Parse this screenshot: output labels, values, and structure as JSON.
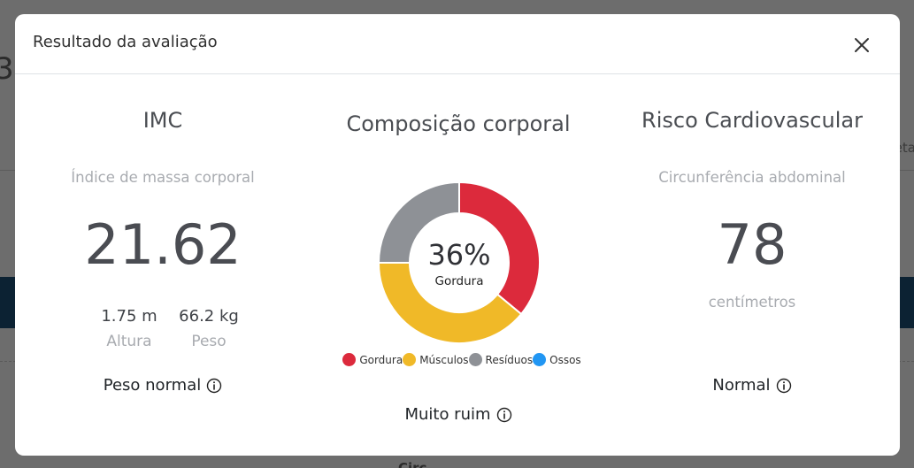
{
  "modal": {
    "title": "Resultado da avaliação"
  },
  "imc": {
    "title": "IMC",
    "subtitle": "Índice de massa corporal",
    "value": "21.62",
    "height_value": "1.75 m",
    "height_label": "Altura",
    "weight_value": "66.2 kg",
    "weight_label": "Peso",
    "status": "Peso normal"
  },
  "composition": {
    "title": "Composição corporal",
    "center_value": "36%",
    "center_label": "Gordura",
    "status": "Muito ruim",
    "legend": [
      {
        "label": "Gordura",
        "color": "#dc2a3c"
      },
      {
        "label": "Músculos",
        "color": "#f0b928"
      },
      {
        "label": "Resíduos",
        "color": "#8e9196"
      },
      {
        "label": "Ossos",
        "color": "#2196f3"
      }
    ]
  },
  "risk": {
    "title": "Risco Cardiovascular",
    "subtitle": "Circunferência abdominal",
    "value": "78",
    "unit": "centímetros",
    "status": "Normal"
  },
  "chart_data": {
    "type": "pie",
    "categories": [
      "Gordura",
      "Músculos",
      "Resíduos",
      "Ossos"
    ],
    "values": [
      36,
      39,
      25,
      0
    ],
    "colors": [
      "#dc2a3c",
      "#f0b928",
      "#8e9196",
      "#2196f3"
    ]
  }
}
